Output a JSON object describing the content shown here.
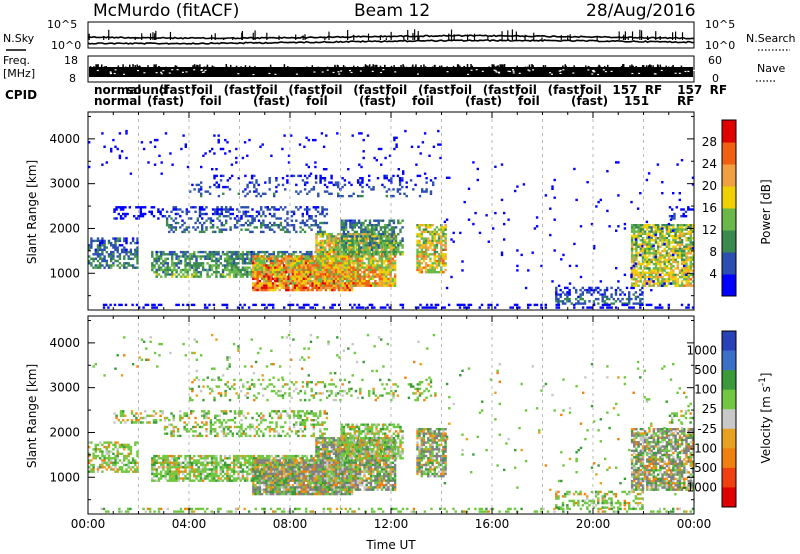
{
  "header": {
    "station": "McMurdo (fitACF)",
    "beam": "Beam 12",
    "date": "28/Aug/2016"
  },
  "noise_panel": {
    "left_label": "N.Sky",
    "right_label": "N.Search",
    "left_ticks": [
      "10^5",
      "10^0"
    ],
    "right_ticks": [
      "10^5",
      "10^0"
    ]
  },
  "freq_panel": {
    "left_label_1": "Freq.",
    "left_label_2": "[MHz]",
    "right_label": "Nave",
    "left_ticks": [
      "18",
      "8"
    ],
    "right_ticks": [
      "60",
      "0"
    ]
  },
  "cpid_panel": {
    "label": "CPID",
    "row1": [
      "normal",
      "sound",
      "(fast)",
      "foil",
      "(fast)",
      "foil",
      "(fast)",
      "foil",
      "(fast)",
      "foil",
      "(fast)",
      "foil",
      "(fast)",
      "foil",
      "(fast)",
      "foil",
      "157",
      "RF",
      "157",
      "RF"
    ],
    "row2": [
      "normal",
      "(fast)",
      "foil",
      "(fast)",
      "foil",
      "(fast)",
      "foil",
      "(fast)",
      "foil",
      "(fast)",
      "151",
      "RF"
    ]
  },
  "chart_data": [
    {
      "type": "heatmap",
      "name": "power",
      "xlabel": "",
      "ylabel": "Slant Range [km]",
      "xlim": [
        "00:00",
        "24:00"
      ],
      "ylim": [
        180,
        4600
      ],
      "y_ticks": [
        1000,
        2000,
        3000,
        4000
      ],
      "colorbar": {
        "label": "Power [dB]",
        "ticks": [
          4,
          8,
          12,
          16,
          20,
          24,
          28
        ],
        "colors": [
          "#0000ff",
          "#2a4fb0",
          "#3a8a50",
          "#6ab84a",
          "#f0d000",
          "#f0a040",
          "#f06010",
          "#e00000"
        ]
      }
    },
    {
      "type": "heatmap",
      "name": "velocity",
      "xlabel": "Time UT",
      "ylabel": "Slant Range [km]",
      "xlim": [
        "00:00",
        "24:00"
      ],
      "ylim": [
        180,
        4600
      ],
      "y_ticks": [
        1000,
        2000,
        3000,
        4000
      ],
      "x_ticks": [
        "00:00",
        "04:00",
        "08:00",
        "12:00",
        "16:00",
        "20:00",
        "00:00"
      ],
      "colorbar": {
        "label": "Velocity [m s^-1]",
        "ticks": [
          "1000",
          "500",
          "100",
          "25",
          "-25",
          "-100",
          "-500",
          "-1000"
        ],
        "colors": [
          "#2840b8",
          "#3a70c8",
          "#3a9a3a",
          "#70c840",
          "#c8c8c8",
          "#e8a020",
          "#f08010",
          "#f04010",
          "#e00000"
        ]
      },
      "ground_scatter_color": "#808080"
    }
  ]
}
